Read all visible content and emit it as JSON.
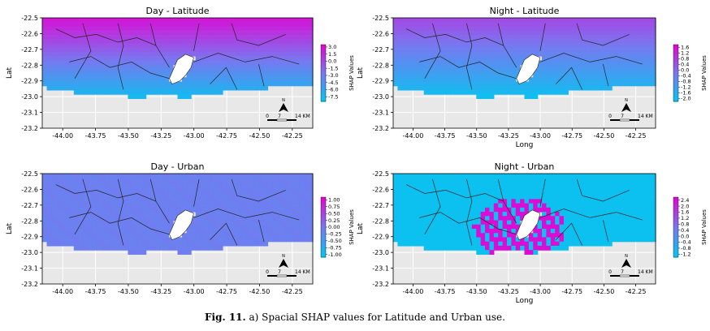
{
  "caption": {
    "label": "Fig. 11.",
    "text": "a) Spacial SHAP values for Latitude and Urban use."
  },
  "colors": {
    "sea": "#e8e8e8",
    "grid": "#ffffff",
    "boundary": "#222222",
    "cmap_low": "#00c8f0",
    "cmap_mid": "#7878f0",
    "cmap_high": "#e600d2"
  },
  "scale_bar": {
    "labels": [
      "0",
      "7",
      "14 KM"
    ],
    "north": "N"
  },
  "chart_data": [
    {
      "type": "heatmap",
      "id": "day-latitude",
      "title": "Day - Latitude",
      "xlabel": "",
      "ylabel": "Lat",
      "xlim": [
        -44.1,
        -42.25
      ],
      "ylim": [
        -23.2,
        -22.5
      ],
      "xticks": [
        "-44.00",
        "-43.75",
        "-43.50",
        "-43.25",
        "-43.00",
        "-42.75",
        "-42.50",
        "-42.25"
      ],
      "yticks": [
        "-22.5",
        "-22.6",
        "-22.7",
        "-22.8",
        "-22.9",
        "-23.0",
        "-23.1",
        "-23.2"
      ],
      "colorbar": {
        "label": "SHAP Values",
        "range": [
          -8.5,
          3.5
        ],
        "ticks": [
          "3.0",
          "1.5",
          "0.0",
          "-1.5",
          "-3.0",
          "-4.5",
          "-6.0",
          "-7.5"
        ]
      },
      "field": {
        "kind": "gradient-lat",
        "north_value": 2.5,
        "south_value": -7.5
      }
    },
    {
      "type": "heatmap",
      "id": "night-latitude",
      "title": "Night - Latitude",
      "xlabel": "Long",
      "ylabel": "Lat",
      "xlim": [
        -44.1,
        -42.25
      ],
      "ylim": [
        -23.2,
        -22.5
      ],
      "xticks": [
        "-44.00",
        "-43.75",
        "-43.50",
        "-43.25",
        "-43.00",
        "-42.75",
        "-42.50",
        "-42.25"
      ],
      "yticks": [
        "-22.5",
        "-22.6",
        "-22.7",
        "-22.8",
        "-22.9",
        "-23.0",
        "-23.1",
        "-23.2"
      ],
      "colorbar": {
        "label": "SHAP Values",
        "range": [
          -2.2,
          1.8
        ],
        "ticks": [
          "1.6",
          "1.2",
          "0.8",
          "0.4",
          "0.0",
          "-0.4",
          "-0.8",
          "-1.2",
          "-1.6",
          "-2.0"
        ]
      },
      "field": {
        "kind": "gradient-lat",
        "north_value": 0.6,
        "south_value": -2.0
      }
    },
    {
      "type": "heatmap",
      "id": "day-urban",
      "title": "Day - Urban",
      "xlabel": "",
      "ylabel": "Lat",
      "xlim": [
        -44.1,
        -42.25
      ],
      "ylim": [
        -23.2,
        -22.5
      ],
      "xticks": [
        "-44.00",
        "-43.75",
        "-43.50",
        "-43.25",
        "-43.00",
        "-42.75",
        "-42.50",
        "-42.25"
      ],
      "yticks": [
        "-22.5",
        "-22.6",
        "-22.7",
        "-22.8",
        "-22.9",
        "-23.0",
        "-23.1",
        "-23.2"
      ],
      "colorbar": {
        "label": "SHAP Values",
        "range": [
          -1.1,
          1.1
        ],
        "ticks": [
          "1.00",
          "0.75",
          "0.50",
          "0.25",
          "0.00",
          "-0.25",
          "-0.50",
          "-0.75",
          "-1.00"
        ]
      },
      "field": {
        "kind": "uniform",
        "value": -0.1
      }
    },
    {
      "type": "heatmap",
      "id": "night-urban",
      "title": "Night - Urban",
      "xlabel": "Long",
      "ylabel": "Lat",
      "xlim": [
        -44.1,
        -42.25
      ],
      "ylim": [
        -23.2,
        -22.5
      ],
      "xticks": [
        "-44.00",
        "-43.75",
        "-43.50",
        "-43.25",
        "-43.00",
        "-42.75",
        "-42.50",
        "-42.25"
      ],
      "yticks": [
        "-22.5",
        "-22.6",
        "-22.7",
        "-22.8",
        "-22.9",
        "-23.0",
        "-23.1",
        "-23.2"
      ],
      "colorbar": {
        "label": "SHAP Values",
        "range": [
          -1.4,
          2.6
        ],
        "ticks": [
          "2.4",
          "2.0",
          "1.6",
          "1.2",
          "0.8",
          "0.4",
          "0.0",
          "-0.4",
          "-0.8",
          "-1.2"
        ]
      },
      "field": {
        "kind": "urban-core",
        "background": -1.2,
        "core": 2.4
      }
    }
  ]
}
